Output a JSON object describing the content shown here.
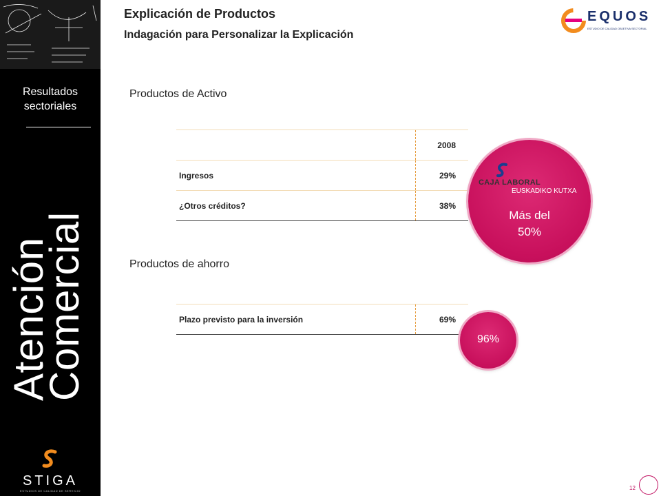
{
  "header": {
    "title": "Explicación de Productos",
    "subtitle": "Indagación para Personalizar la Explicación"
  },
  "brand": {
    "name": "EQUOS",
    "tagline": "ESTUDIO DE CALIDAD OBJETIVA SECTORIAL",
    "accent_color": "#e5007e",
    "navy_color": "#1a2f6b"
  },
  "sidebar": {
    "section_line1": "Resultados",
    "section_line2": "sectoriales",
    "vertical_line1": "Atención",
    "vertical_line2": "Comercial",
    "footer_brand": "STIGA",
    "footer_tagline": "ESTUDIOS DE CALIDAD DE SERVICIO"
  },
  "activo": {
    "heading": "Productos de Activo",
    "col_header": "2008",
    "rows": [
      {
        "label": "Ingresos",
        "value": "29%"
      },
      {
        "label": "¿Otros créditos?",
        "value": "38%"
      }
    ]
  },
  "ahorro": {
    "heading": "Productos de ahorro",
    "rows": [
      {
        "label": "Plazo previsto para la inversión",
        "value": "69%"
      }
    ]
  },
  "highlight_big": {
    "bank_name": "CAJA LABORAL",
    "bank_sub": "EUSKADIKO KUTXA",
    "line1": "Más del",
    "line2": "50%",
    "color": "#c8105c"
  },
  "highlight_small": {
    "value": "96%",
    "color": "#c8105c"
  },
  "footer": {
    "page_number": "12"
  }
}
